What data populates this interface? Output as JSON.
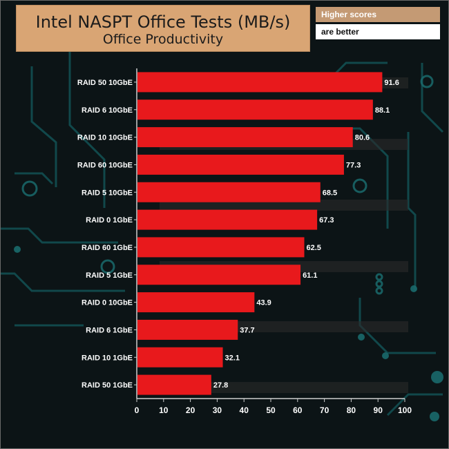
{
  "header": {
    "title": "Intel NASPT Office Tests (MB/s)",
    "subtitle": "Office Productivity",
    "note_line1": "Higher scores",
    "note_line2": "are better"
  },
  "colors": {
    "bar": "#e8191c",
    "title_bg": "#d9a574",
    "background": "#0c1416",
    "circuit": "#1a6a6c",
    "label_text": "#ffffff"
  },
  "chart_data": {
    "type": "bar",
    "orientation": "horizontal",
    "title": "Intel NASPT Office Tests (MB/s)",
    "subtitle": "Office Productivity",
    "categories": [
      "RAID 50 10GbE",
      "RAID 6 10GbE",
      "RAID 10 10GbE",
      "RAID 60 10GbE",
      "RAID 5 10GbE",
      "RAID 0 1GbE",
      "RAID 60 1GbE",
      "RAID 5 1GbE",
      "RAID 0 10GbE",
      "RAID 6 1GbE",
      "RAID 10 1GbE",
      "RAID 50 1GbE"
    ],
    "values": [
      91.6,
      88.1,
      80.6,
      77.3,
      68.5,
      67.3,
      62.5,
      61.1,
      43.9,
      37.7,
      32.1,
      27.8
    ],
    "value_labels": [
      "91.6",
      "88.1",
      "80.6",
      "77.3",
      "68.5",
      "67.3",
      "62.5",
      "61.1",
      "43.9",
      "37.7",
      "32.1",
      "27.8"
    ],
    "xlim": [
      0,
      100
    ],
    "xticks": [
      "0",
      "10",
      "20",
      "30",
      "40",
      "50",
      "60",
      "70",
      "80",
      "90",
      "100"
    ],
    "grid": false
  }
}
